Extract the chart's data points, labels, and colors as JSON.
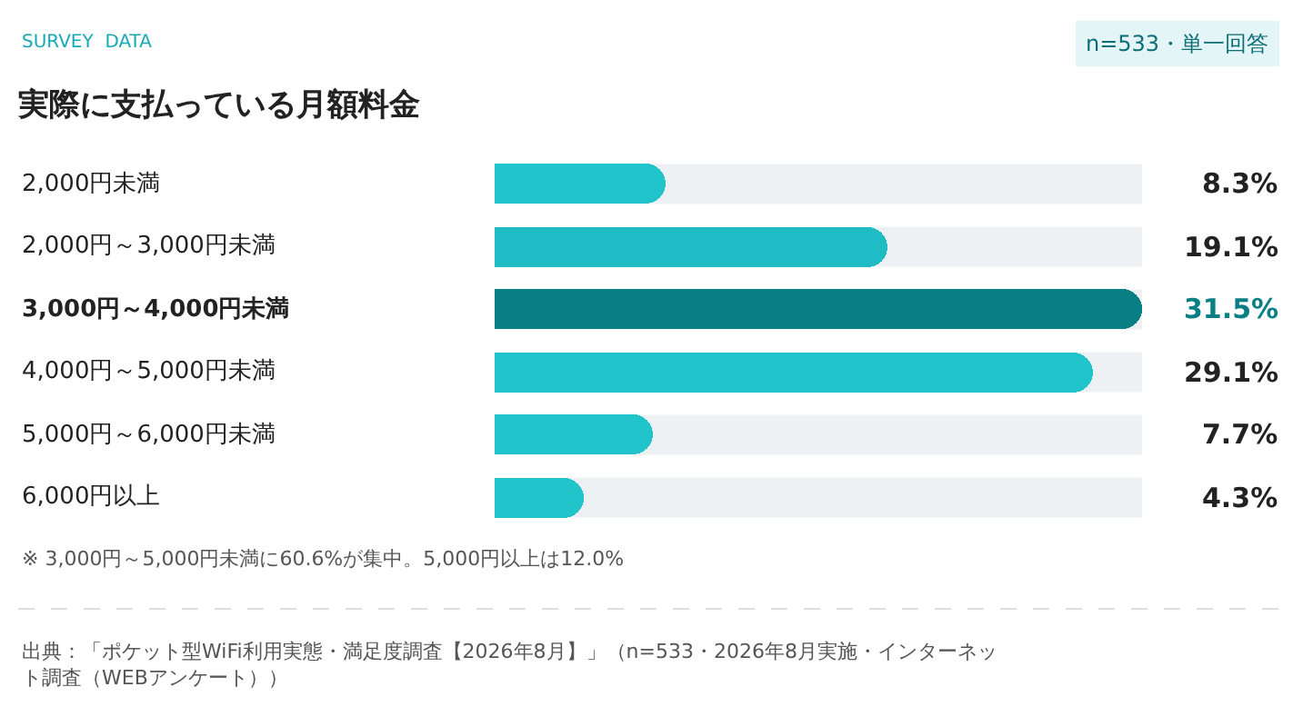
{
  "chart_data": {
    "type": "bar",
    "orientation": "horizontal",
    "title": "実際に支払っている月額料金",
    "categories": [
      "2,000円未満",
      "2,000円～3,000円未満",
      "3,000円～4,000円未満",
      "4,000円～5,000円未満",
      "5,000円～6,000円未満",
      "6,000円以上"
    ],
    "values": [
      8.3,
      19.1,
      31.5,
      29.1,
      7.7,
      4.3
    ],
    "value_labels": [
      "8.3%",
      "19.1%",
      "31.5%",
      "29.1%",
      "7.7%",
      "4.3%"
    ],
    "colors": [
      "#22c4cc",
      "#1fbcc6",
      "#087f84",
      "#22c4cc",
      "#22c4cc",
      "#22c4cc"
    ],
    "xlim": [
      0,
      31.5
    ],
    "tick_labels": "y",
    "grid": false,
    "annotations": [
      "SURVEY  DATA",
      "n=533・単一回答",
      "※ 3,000円～5,000円未満に60.6%が集中。5,000円以上は12.0%",
      "出典：「ポケット型WiFi利用実態・満足度調査【2026年8月】」（n=533・2026年8月実施・インターネット調査（WEBアンケート））"
    ]
  }
}
